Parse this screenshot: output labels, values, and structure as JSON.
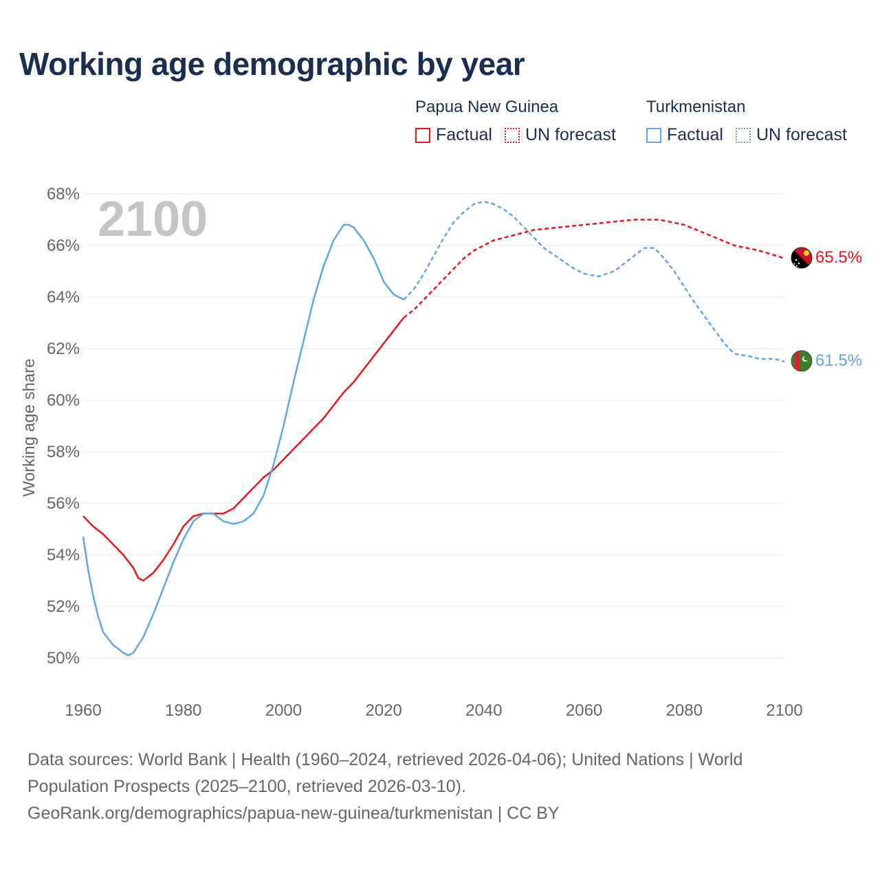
{
  "title": "Working age demographic by year",
  "year_label": "2100",
  "legend": {
    "png": {
      "country": "Papua New Guinea",
      "factual": "Factual",
      "forecast": "UN forecast"
    },
    "tkm": {
      "country": "Turkmenistan",
      "factual": "Factual",
      "forecast": "UN forecast"
    }
  },
  "colors": {
    "png": "#e8141b",
    "tkm": "#5fa6e6",
    "title": "#1a2e4f",
    "grid": "#e6e6e6"
  },
  "footer": {
    "line1": "Data sources: World Bank | Health (1960–2024, retrieved 2026-04-06); United Nations | World",
    "line2": "Population Prospects (2025–2100, retrieved 2026-03-10).",
    "line3": "GeoRank.org/demographics/papua-new-guinea/turkmenistan | CC BY"
  },
  "chart_data": {
    "type": "line",
    "title": "Working age demographic by year",
    "xlabel": "",
    "ylabel": "Working age share",
    "xlim": [
      1960,
      2100
    ],
    "ylim": [
      50,
      68
    ],
    "xticks": [
      1960,
      1980,
      2000,
      2020,
      2040,
      2060,
      2080,
      2100
    ],
    "yticks": [
      50,
      52,
      54,
      56,
      58,
      60,
      62,
      64,
      66,
      68
    ],
    "ytick_suffix": "%",
    "grid": true,
    "factual_end_year": 2024,
    "series": [
      {
        "key": "png",
        "name": "Papua New Guinea",
        "end_label": "65.5%",
        "flag": "papua-new-guinea-flag-icon",
        "x": [
          1960,
          1962,
          1964,
          1966,
          1968,
          1970,
          1971,
          1972,
          1974,
          1976,
          1978,
          1980,
          1982,
          1984,
          1986,
          1988,
          1990,
          1992,
          1994,
          1996,
          1998,
          2000,
          2002,
          2004,
          2006,
          2008,
          2010,
          2012,
          2014,
          2016,
          2018,
          2020,
          2022,
          2024,
          2026,
          2028,
          2030,
          2032,
          2034,
          2036,
          2038,
          2040,
          2042,
          2044,
          2046,
          2048,
          2050,
          2055,
          2060,
          2065,
          2070,
          2075,
          2080,
          2085,
          2090,
          2095,
          2100
        ],
        "y": [
          55.5,
          55.1,
          54.8,
          54.4,
          54.0,
          53.5,
          53.1,
          53.0,
          53.3,
          53.8,
          54.4,
          55.1,
          55.5,
          55.6,
          55.6,
          55.6,
          55.8,
          56.2,
          56.6,
          57.0,
          57.3,
          57.7,
          58.1,
          58.5,
          58.9,
          59.3,
          59.8,
          60.3,
          60.7,
          61.2,
          61.7,
          62.2,
          62.7,
          63.2,
          63.5,
          63.9,
          64.3,
          64.7,
          65.1,
          65.5,
          65.8,
          66.0,
          66.2,
          66.3,
          66.4,
          66.5,
          66.6,
          66.7,
          66.8,
          66.9,
          67.0,
          67.0,
          66.8,
          66.4,
          66.0,
          65.8,
          65.5
        ]
      },
      {
        "key": "tkm",
        "name": "Turkmenistan",
        "end_label": "61.5%",
        "flag": "turkmenistan-flag-icon",
        "x": [
          1960,
          1961,
          1962,
          1963,
          1964,
          1966,
          1968,
          1969,
          1970,
          1972,
          1974,
          1976,
          1978,
          1980,
          1982,
          1984,
          1986,
          1988,
          1990,
          1992,
          1994,
          1996,
          1998,
          2000,
          2002,
          2004,
          2006,
          2008,
          2010,
          2012,
          2013,
          2014,
          2016,
          2018,
          2020,
          2022,
          2024,
          2026,
          2028,
          2030,
          2032,
          2034,
          2036,
          2038,
          2040,
          2042,
          2044,
          2046,
          2048,
          2050,
          2052,
          2055,
          2058,
          2060,
          2063,
          2066,
          2068,
          2070,
          2072,
          2074,
          2076,
          2078,
          2080,
          2082,
          2085,
          2088,
          2090,
          2093,
          2095,
          2098,
          2100
        ],
        "y": [
          54.7,
          53.4,
          52.4,
          51.6,
          51.0,
          50.5,
          50.2,
          50.1,
          50.2,
          50.8,
          51.7,
          52.7,
          53.7,
          54.6,
          55.3,
          55.6,
          55.6,
          55.3,
          55.2,
          55.3,
          55.6,
          56.3,
          57.5,
          59.0,
          60.7,
          62.3,
          63.9,
          65.2,
          66.2,
          66.8,
          66.8,
          66.7,
          66.2,
          65.5,
          64.6,
          64.1,
          63.9,
          64.3,
          64.9,
          65.6,
          66.3,
          66.9,
          67.3,
          67.6,
          67.7,
          67.6,
          67.4,
          67.1,
          66.7,
          66.3,
          65.9,
          65.5,
          65.1,
          64.9,
          64.8,
          65.0,
          65.3,
          65.6,
          65.9,
          65.9,
          65.5,
          65.0,
          64.4,
          63.8,
          63.0,
          62.2,
          61.8,
          61.7,
          61.6,
          61.6,
          61.5
        ]
      }
    ]
  }
}
